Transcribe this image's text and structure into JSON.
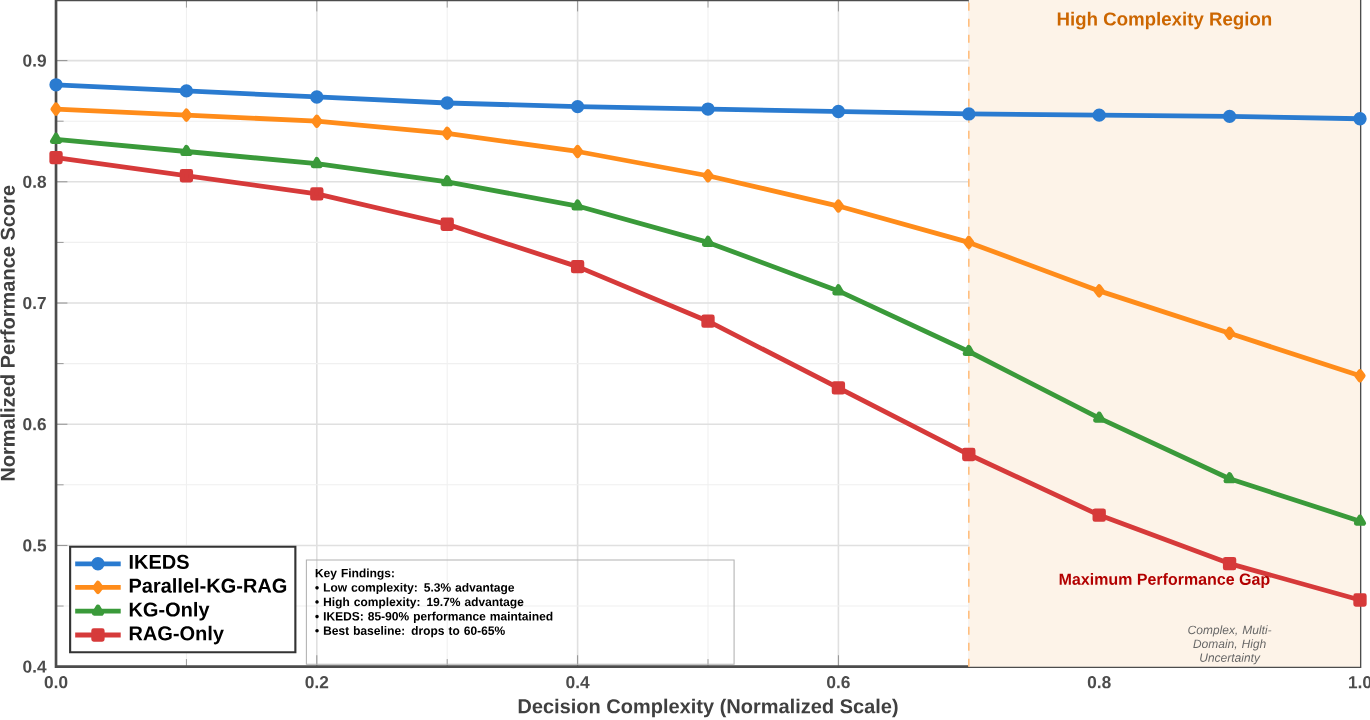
{
  "chart_data": {
    "type": "line",
    "xlabel": "Decision Complexity (Normalized Scale)",
    "ylabel": "Normalized Performance Score",
    "x": [
      0,
      0.1,
      0.2,
      0.3,
      0.4,
      0.5,
      0.6,
      0.7,
      0.8,
      0.9,
      1.0
    ],
    "series": [
      {
        "name": "IKEDS",
        "color": "#2a7bd0",
        "marker": "circle",
        "values": [
          0.88,
          0.875,
          0.87,
          0.865,
          0.862,
          0.86,
          0.858,
          0.856,
          0.855,
          0.854,
          0.852
        ]
      },
      {
        "name": "Parallel-KG-RAG",
        "color": "#ff8c1a",
        "marker": "diamond",
        "values": [
          0.86,
          0.855,
          0.85,
          0.84,
          0.825,
          0.805,
          0.78,
          0.75,
          0.71,
          0.675,
          0.64
        ]
      },
      {
        "name": "KG-Only",
        "color": "#3a9a3a",
        "marker": "triangle",
        "values": [
          0.835,
          0.825,
          0.815,
          0.8,
          0.78,
          0.75,
          0.71,
          0.66,
          0.605,
          0.555,
          0.52
        ]
      },
      {
        "name": "RAG-Only",
        "color": "#d63a3a",
        "marker": "square",
        "values": [
          0.82,
          0.805,
          0.79,
          0.765,
          0.73,
          0.685,
          0.63,
          0.575,
          0.525,
          0.485,
          0.455
        ]
      }
    ],
    "xlim": [
      0,
      1
    ],
    "ylim": [
      0.4,
      0.95
    ],
    "xticks": [
      {
        "value": 0,
        "label": "0.0"
      },
      {
        "value": 0.2,
        "label": "0.2"
      },
      {
        "value": 0.4,
        "label": "0.4"
      },
      {
        "value": 0.6,
        "label": "0.6"
      },
      {
        "value": 0.8,
        "label": "0.8"
      },
      {
        "value": 1,
        "label": "1.0"
      }
    ],
    "ref_lines": [
      {
        "axis": "x",
        "value": 0.7,
        "color": "#ffbf80",
        "line_style": "dashed"
      }
    ],
    "yticks": [
      0.4,
      0.5,
      0.6,
      0.7,
      0.8,
      0.9
    ],
    "bands": [
      {
        "axis": "x",
        "from": 0.7,
        "to": 1.0,
        "label": "High Complexity Region",
        "color": "#fdf3e8"
      }
    ],
    "annotations": [
      "Maximum Performance Gap",
      "Complex, Multi-Domain, High Uncertainty",
      "Key Findings:",
      "• Low complexity: 5.3% advantage",
      "• High complexity: 19.7% advantage",
      "• IKEDS: 85-90% performance maintained",
      "• Best baseline: drops to 60-65%"
    ],
    "grid": true,
    "legend": "bottom left",
    "line_style": "solid"
  }
}
